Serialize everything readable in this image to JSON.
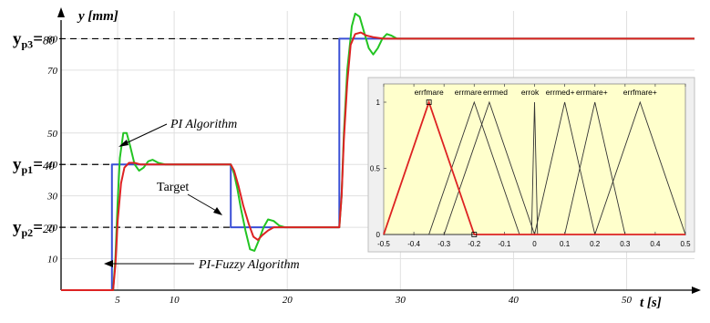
{
  "chart_data": [
    {
      "type": "line",
      "title": "",
      "xlabel": "t  [s]",
      "ylabel": "y [mm]",
      "xlim": [
        0,
        56
      ],
      "ylim": [
        0,
        90
      ],
      "x_ticks": [
        5,
        10,
        20,
        30,
        40,
        50
      ],
      "y_ticks": [
        10,
        20,
        30,
        40,
        50,
        70,
        80
      ],
      "grid": true,
      "reference_levels": [
        {
          "label_main": "y",
          "label_sub": "p1",
          "label_value": "=40",
          "value": 40
        },
        {
          "label_main": "y",
          "label_sub": "p2",
          "label_value": "=20",
          "value": 20
        },
        {
          "label_main": "y",
          "label_sub": "p3",
          "label_value": "=80",
          "value": 80
        }
      ],
      "annotations": {
        "pi": "PI Algorithm",
        "target": "Target",
        "fuzzy": "PI-Fuzzy Algorithm"
      },
      "series": [
        {
          "name": "Target",
          "color": "#3a4fd6",
          "x": [
            0,
            4.5,
            4.5,
            15.0,
            15.0,
            24.6,
            24.6,
            56
          ],
          "y": [
            0,
            0,
            40,
            40,
            20,
            20,
            80,
            80
          ]
        },
        {
          "name": "PI Algorithm",
          "color": "#22c422",
          "x": [
            0,
            4.6,
            4.8,
            5.0,
            5.2,
            5.5,
            5.8,
            6.1,
            6.5,
            6.9,
            7.3,
            7.7,
            8.1,
            8.6,
            9.2,
            10.0,
            15.0,
            15.3,
            15.6,
            15.9,
            16.3,
            16.7,
            17.1,
            17.5,
            17.9,
            18.3,
            18.8,
            19.3,
            19.8,
            20.5,
            24.6,
            24.8,
            25.0,
            25.3,
            25.7,
            26.0,
            26.4,
            26.8,
            27.2,
            27.6,
            28.0,
            28.4,
            28.8,
            29.2,
            29.7,
            30.3,
            31.0,
            56
          ],
          "y": [
            0,
            0,
            10,
            28,
            42,
            50,
            50,
            46,
            40,
            38,
            39,
            41,
            41.5,
            40.5,
            40,
            40,
            40,
            37,
            32,
            26,
            19,
            13,
            12.5,
            16,
            20,
            22.5,
            22,
            20.5,
            20,
            20,
            20,
            30,
            50,
            70,
            84,
            88,
            87,
            82,
            77,
            75,
            77,
            80,
            81.5,
            81,
            80,
            80,
            80,
            80
          ]
        },
        {
          "name": "PI-Fuzzy Algorithm",
          "color": "#dd2222",
          "x": [
            0,
            4.6,
            4.8,
            5.0,
            5.3,
            5.6,
            6.0,
            6.5,
            7.0,
            7.6,
            8.5,
            15.0,
            15.3,
            15.7,
            16.1,
            16.6,
            17.0,
            17.4,
            17.8,
            18.3,
            18.8,
            19.5,
            20.5,
            24.6,
            24.8,
            25.0,
            25.3,
            25.6,
            26.0,
            26.5,
            27.0,
            27.6,
            28.5,
            30.0,
            56
          ],
          "y": [
            0,
            0,
            8,
            22,
            34,
            39,
            40.5,
            40.5,
            40,
            40,
            40,
            40,
            38,
            33,
            27,
            21,
            17,
            16,
            17.5,
            19,
            20,
            20,
            20,
            20,
            30,
            48,
            66,
            78,
            81.5,
            82,
            81,
            80.5,
            80,
            80,
            80
          ]
        }
      ]
    },
    {
      "type": "line",
      "title": "",
      "xlabel": "",
      "ylabel": "",
      "xlim": [
        -0.5,
        0.5
      ],
      "ylim": [
        0,
        1
      ],
      "x_ticks": [
        -0.5,
        -0.4,
        -0.3,
        -0.2,
        -0.1,
        0,
        0.1,
        0.2,
        0.3,
        0.4,
        0.5
      ],
      "x_tick_labels": [
        "-0.5",
        "-0.4",
        "-0.3",
        "-0.2",
        "-0.1",
        "0",
        "0.1",
        "0.2",
        "0.3",
        "0.4",
        "0.5"
      ],
      "y_ticks": [
        0,
        0.5,
        1
      ],
      "y_tick_labels": [
        "0",
        "0.5",
        "1"
      ],
      "background": "#ffffcc",
      "membership_functions": [
        {
          "name": "errfmare",
          "points": [
            -0.5,
            -0.35,
            -0.2
          ],
          "color": "#dd2222",
          "highlighted": true
        },
        {
          "name": "errmare",
          "points": [
            -0.35,
            -0.2,
            -0.05
          ],
          "color": "#333333",
          "highlighted": false
        },
        {
          "name": "errmed",
          "points": [
            -0.3,
            -0.15,
            0.0
          ],
          "color": "#333333",
          "highlighted": false
        },
        {
          "name": "errok",
          "points": [
            -0.01,
            0.0,
            0.01
          ],
          "color": "#333333",
          "highlighted": false
        },
        {
          "name": "errmed+",
          "points": [
            0.0,
            0.1,
            0.2
          ],
          "color": "#333333",
          "highlighted": false
        },
        {
          "name": "errmare+",
          "points": [
            0.1,
            0.2,
            0.3
          ],
          "color": "#333333",
          "highlighted": false
        },
        {
          "name": "errfmare+",
          "points": [
            0.2,
            0.35,
            0.5
          ],
          "color": "#333333",
          "highlighted": false
        }
      ]
    }
  ]
}
